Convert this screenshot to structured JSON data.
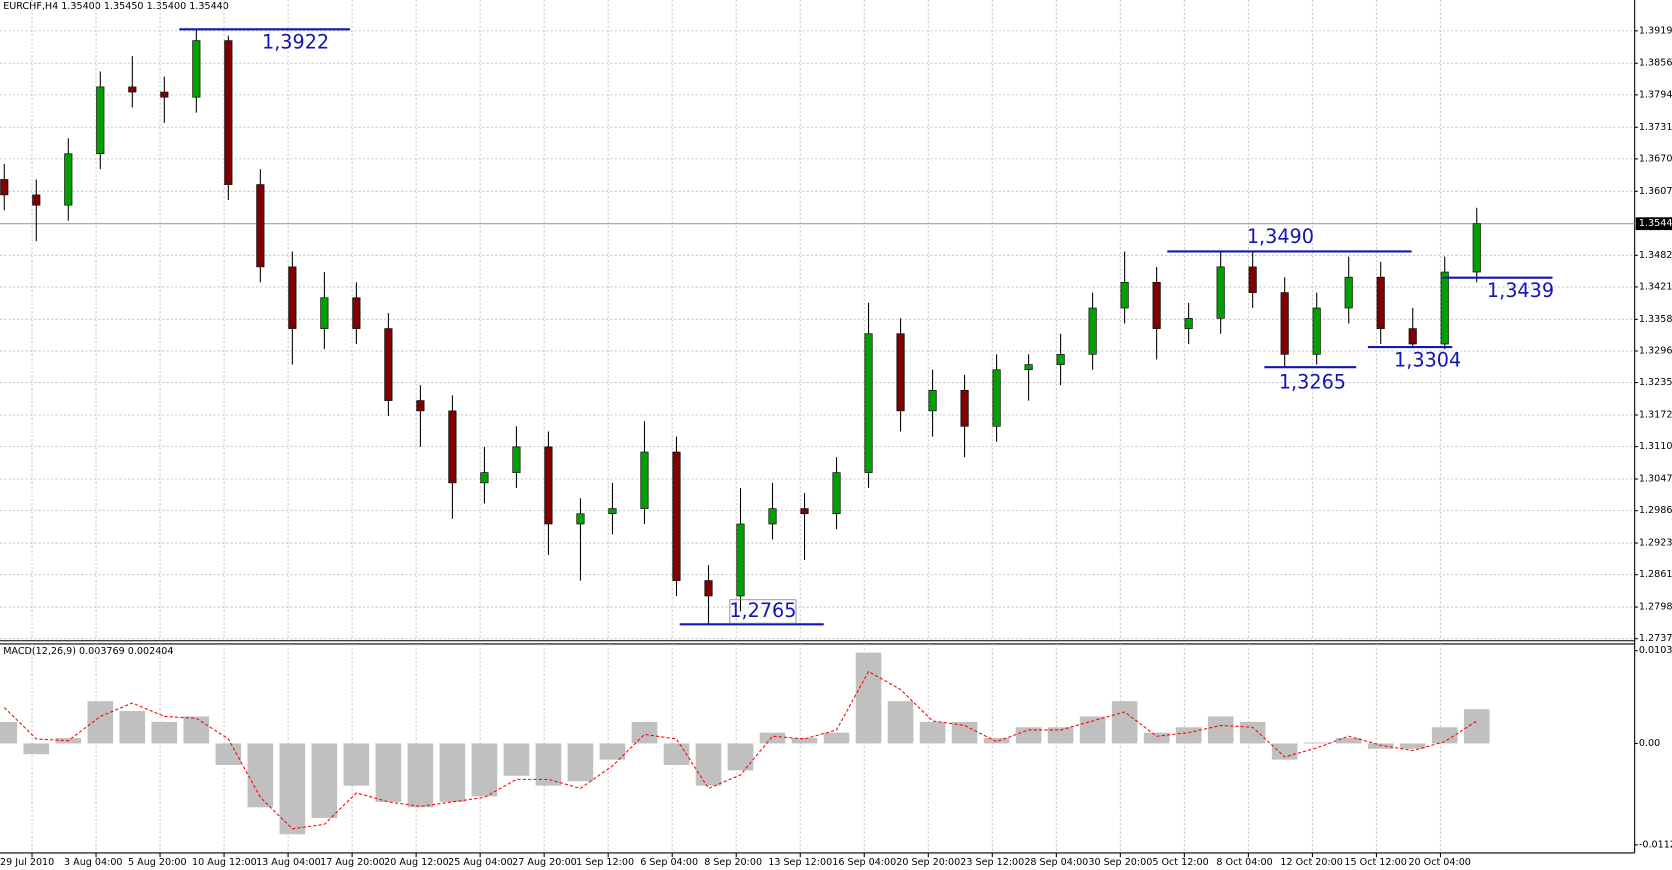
{
  "chart_data": [
    {
      "type": "candlestick",
      "title": "EURCHF,H4  1.35400 1.35450 1.35400 1.35440",
      "open": [
        1.363,
        1.36,
        1.358,
        1.368,
        1.381,
        1.38,
        1.379,
        1.39,
        1.362,
        1.346,
        1.334,
        1.34,
        1.334,
        1.32,
        1.318,
        1.304,
        1.306,
        1.311,
        1.296,
        1.298,
        1.299,
        1.31,
        1.285,
        1.282,
        1.296,
        1.299,
        1.298,
        1.306,
        1.333,
        1.318,
        1.322,
        1.315,
        1.326,
        1.327,
        1.329,
        1.338,
        1.343,
        1.334,
        1.336,
        1.346,
        1.341,
        1.329,
        1.338,
        1.344,
        1.334,
        1.331,
        1.345
      ],
      "high": [
        1.366,
        1.363,
        1.371,
        1.384,
        1.387,
        1.383,
        1.3922,
        1.391,
        1.365,
        1.349,
        1.345,
        1.343,
        1.337,
        1.323,
        1.321,
        1.311,
        1.315,
        1.314,
        1.301,
        1.304,
        1.316,
        1.313,
        1.288,
        1.303,
        1.304,
        1.302,
        1.309,
        1.339,
        1.336,
        1.326,
        1.325,
        1.329,
        1.329,
        1.333,
        1.341,
        1.349,
        1.346,
        1.339,
        1.349,
        1.349,
        1.344,
        1.341,
        1.348,
        1.347,
        1.338,
        1.348,
        1.3575
      ],
      "low": [
        1.357,
        1.351,
        1.355,
        1.365,
        1.377,
        1.374,
        1.376,
        1.359,
        1.343,
        1.327,
        1.33,
        1.331,
        1.317,
        1.311,
        1.297,
        1.3,
        1.303,
        1.29,
        1.285,
        1.294,
        1.296,
        1.282,
        1.2765,
        1.279,
        1.293,
        1.289,
        1.295,
        1.303,
        1.314,
        1.313,
        1.309,
        1.312,
        1.32,
        1.323,
        1.326,
        1.335,
        1.328,
        1.331,
        1.333,
        1.338,
        1.3265,
        1.327,
        1.335,
        1.331,
        1.3304,
        1.33,
        1.343
      ],
      "close": [
        1.36,
        1.358,
        1.368,
        1.381,
        1.38,
        1.379,
        1.39,
        1.362,
        1.346,
        1.334,
        1.34,
        1.334,
        1.32,
        1.318,
        1.304,
        1.306,
        1.311,
        1.296,
        1.298,
        1.299,
        1.31,
        1.285,
        1.282,
        1.296,
        1.299,
        1.298,
        1.306,
        1.333,
        1.318,
        1.322,
        1.315,
        1.326,
        1.327,
        1.329,
        1.338,
        1.343,
        1.334,
        1.336,
        1.346,
        1.341,
        1.329,
        1.338,
        1.344,
        1.334,
        1.331,
        1.345,
        1.3544
      ],
      "up_color": "#00a000",
      "down_color": "#800000",
      "ylim": [
        1.2735,
        1.3979
      ],
      "yticks": [
        {
          "value": 1.3919,
          "label": "1.39190"
        },
        {
          "value": 1.3856,
          "label": "1.38560"
        },
        {
          "value": 1.37945,
          "label": "1.37945"
        },
        {
          "value": 1.37315,
          "label": "1.37315"
        },
        {
          "value": 1.367,
          "label": "1.36700"
        },
        {
          "value": 1.3607,
          "label": "1.36070"
        },
        {
          "value": 1.34825,
          "label": "1.34825"
        },
        {
          "value": 1.3421,
          "label": "1.34210"
        },
        {
          "value": 1.3358,
          "label": "1.33580"
        },
        {
          "value": 1.32965,
          "label": "1.32965"
        },
        {
          "value": 1.3235,
          "label": "1.32350"
        },
        {
          "value": 1.3172,
          "label": "1.31720"
        },
        {
          "value": 1.31105,
          "label": "1.31105"
        },
        {
          "value": 1.30475,
          "label": "1.30475"
        },
        {
          "value": 1.2986,
          "label": "1.29860"
        },
        {
          "value": 1.2923,
          "label": "1.29230"
        },
        {
          "value": 1.28615,
          "label": "1.28615"
        },
        {
          "value": 1.27985,
          "label": "1.27985"
        },
        {
          "value": 1.2737,
          "label": "1.27370"
        }
      ],
      "current_price": {
        "value": 1.3544,
        "label": "1.35440"
      },
      "x_labels": [
        "29 Jul 2010",
        "3 Aug 04:00",
        "5 Aug 20:00",
        "10 Aug 12:00",
        "13 Aug 04:00",
        "17 Aug 20:00",
        "20 Aug 12:00",
        "25 Aug 04:00",
        "27 Aug 20:00",
        "1 Sep 12:00",
        "6 Sep 04:00",
        "8 Sep 20:00",
        "13 Sep 12:00",
        "16 Sep 04:00",
        "20 Sep 20:00",
        "23 Sep 12:00",
        "28 Sep 04:00",
        "30 Sep 20:00",
        "5 Oct 12:00",
        "8 Oct 04:00",
        "12 Oct 20:00",
        "15 Oct 12:00",
        "20 Oct 04:00"
      ],
      "levels": [
        {
          "value": 1.3922,
          "label": "1,3922"
        },
        {
          "value": 1.349,
          "label": "1,3490"
        },
        {
          "value": 1.3439,
          "label": "1,3439"
        },
        {
          "value": 1.3265,
          "label": "1,3265"
        },
        {
          "value": 1.3304,
          "label": "1,3304"
        },
        {
          "value": 1.2765,
          "label": "1,2765"
        }
      ],
      "level_color": "#1414b4",
      "grid": true
    },
    {
      "type": "macd",
      "title": "MACD(12,26,9) 0.003769 0.002404",
      "histogram": [
        0.0024,
        -0.0012,
        0.0006,
        0.0047,
        0.0036,
        0.0024,
        0.003,
        -0.0024,
        -0.0071,
        -0.0101,
        -0.0083,
        -0.0047,
        -0.0065,
        -0.0071,
        -0.0065,
        -0.0059,
        -0.0036,
        -0.0047,
        -0.0042,
        -0.0018,
        0.0024,
        -0.0024,
        -0.0047,
        -0.003,
        0.0012,
        0.0006,
        0.0012,
        0.0101,
        0.0047,
        0.0024,
        0.0024,
        0.0006,
        0.0018,
        0.0018,
        0.003,
        0.0047,
        0.0012,
        0.0018,
        0.003,
        0.0024,
        -0.0018,
        0.0001,
        0.0006,
        -0.0006,
        -0.0006,
        0.0018,
        0.0038
      ],
      "signal": [
        0.004,
        0.0005,
        0.0003,
        0.003,
        0.0045,
        0.003,
        0.0028,
        0.0005,
        -0.006,
        -0.0095,
        -0.009,
        -0.0055,
        -0.0065,
        -0.007,
        -0.0065,
        -0.006,
        -0.004,
        -0.004,
        -0.005,
        -0.0025,
        0.001,
        0.0005,
        -0.005,
        -0.0035,
        0.0008,
        0.0005,
        0.0015,
        0.008,
        0.006,
        0.0025,
        0.002,
        0.0002,
        0.0015,
        0.0015,
        0.0025,
        0.0035,
        0.0008,
        0.0012,
        0.002,
        0.0018,
        -0.0015,
        -0.0005,
        0.0008,
        -0.0002,
        -0.0008,
        0.0002,
        0.0025
      ],
      "bar_color": "#c0c0c0",
      "signal_color": "#ff0000",
      "ylim": [
        -0.0123,
        0.0113
      ],
      "yticks": [
        0.010315,
        {
          "value": 0,
          "label": "0.00"
        },
        -0.01128
      ]
    }
  ]
}
